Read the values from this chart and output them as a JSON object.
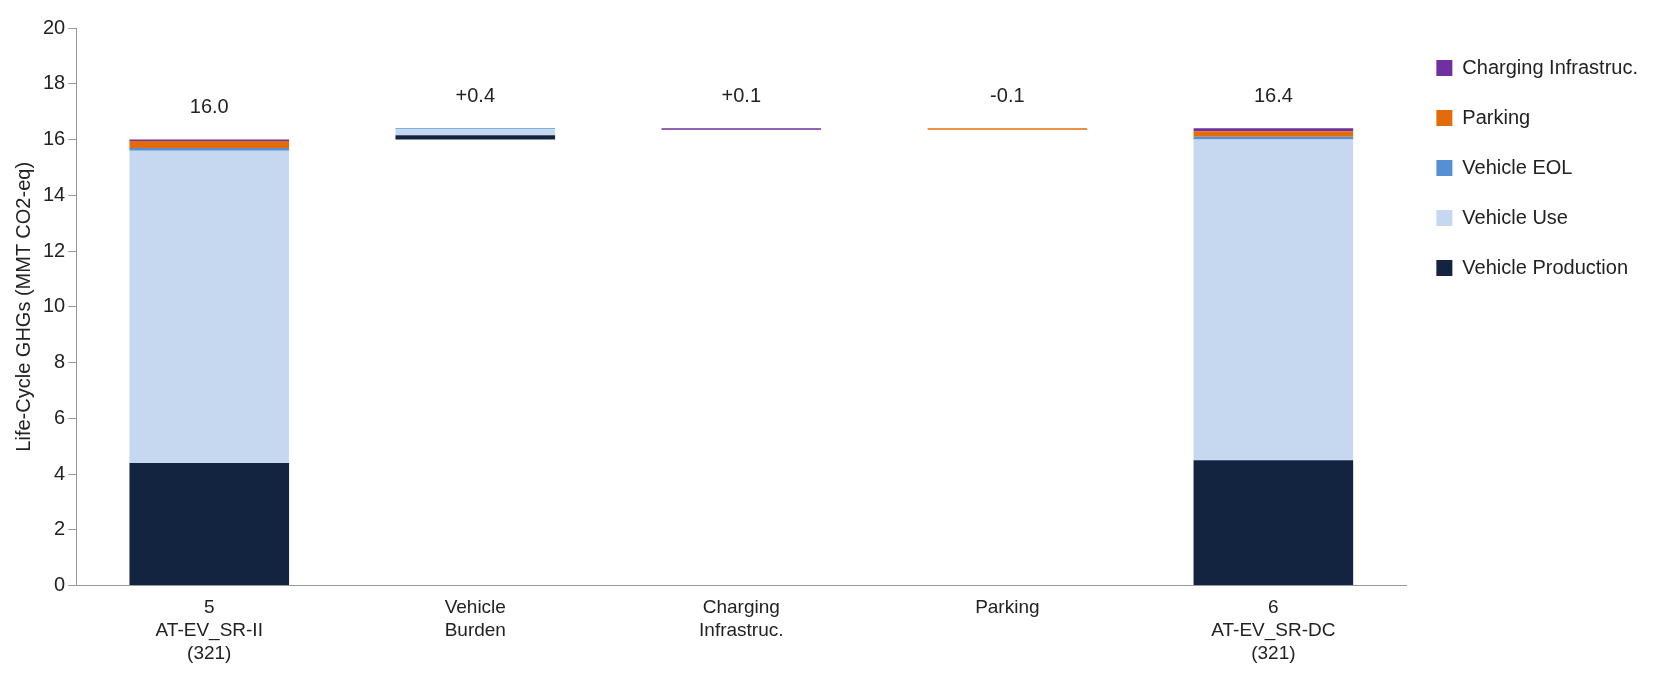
{
  "chart_data": {
    "type": "bar",
    "ylabel": "Life-Cycle GHGs (MMT CO2-eq)",
    "categories": [
      "5\nAT-EV_SR-II\n(321)",
      "Vehicle\nBurden",
      "Charging\nInfrastruc.",
      "Parking",
      "6\nAT-EV_SR-DC\n(321)"
    ],
    "series": [
      {
        "name": "Vehicle Production",
        "color": "#12243f",
        "values": [
          4.4,
          0.15,
          null,
          null,
          4.5
        ],
        "base": [
          0,
          16.0,
          null,
          null,
          0
        ]
      },
      {
        "name": "Vehicle Use",
        "color": "#c5d8ef",
        "values": [
          11.2,
          0.22,
          null,
          null,
          11.5
        ],
        "base": [
          4.4,
          16.15,
          null,
          null,
          4.5
        ]
      },
      {
        "name": "Vehicle EOL",
        "color": "#5590d4",
        "values": [
          0.1,
          0.03,
          null,
          null,
          0.1
        ],
        "base": [
          15.6,
          16.37,
          null,
          null,
          16.0
        ]
      },
      {
        "name": "Parking",
        "color": "#e36c0a",
        "values": [
          0.25,
          null,
          null,
          -0.05,
          0.2
        ],
        "base": [
          15.7,
          null,
          null,
          16.4,
          16.1
        ]
      },
      {
        "name": "Charging Infrastruc.",
        "color": "#7030a0",
        "values": [
          0.05,
          null,
          0.05,
          null,
          0.1
        ],
        "base": [
          15.95,
          null,
          16.35,
          null,
          16.3
        ]
      }
    ],
    "annotations": [
      {
        "text": "16.0",
        "x": "5\nAT-EV_SR-II\n(321)",
        "y": 16.0
      },
      {
        "text": "+0.4",
        "x": "Vehicle\nBurden",
        "y": 16.4
      },
      {
        "text": "+0.1",
        "x": "Charging\nInfrastruc.",
        "y": 16.4
      },
      {
        "text": "-0.1",
        "x": "Parking",
        "y": 16.4
      },
      {
        "text": "16.4",
        "x": "6\nAT-EV_SR-DC\n(321)",
        "y": 16.4
      }
    ],
    "ylim": [
      0,
      20
    ],
    "yticks": [
      0,
      2,
      4,
      6,
      8,
      10,
      12,
      14,
      16,
      18,
      20
    ],
    "grid": false,
    "legend": "right"
  }
}
